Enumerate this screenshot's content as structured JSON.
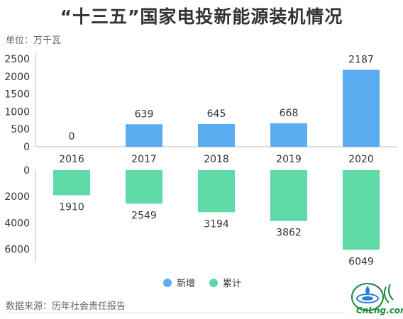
{
  "title": "“十三五”国家电投新能源装机情况",
  "unit_label": "单位：万千瓦",
  "source_label": "数据来源：历年社会责任报告",
  "logo_text": "CnLng.com",
  "colors": {
    "new": "#5aadf0",
    "cumulative": "#5fd9a6"
  },
  "chart_data": [
    {
      "type": "bar",
      "categories": [
        "2016",
        "2017",
        "2018",
        "2019",
        "2020"
      ],
      "series": [
        {
          "name": "新增",
          "values": [
            0,
            639,
            645,
            668,
            2187
          ]
        }
      ],
      "ylim": [
        0,
        2500
      ],
      "yticks": [
        "2500",
        "2000",
        "1500",
        "1000",
        "500",
        "0"
      ],
      "grid": false
    },
    {
      "type": "bar",
      "categories": [
        "2016",
        "2017",
        "2018",
        "2019",
        "2020"
      ],
      "series": [
        {
          "name": "累计",
          "values": [
            1910,
            2549,
            3194,
            3862,
            6049
          ]
        }
      ],
      "ylim": [
        0,
        7000
      ],
      "yticks": [
        "0",
        "2000",
        "4000",
        "6000"
      ],
      "orientation": "inverted",
      "grid": false
    }
  ],
  "legend": [
    {
      "label": "新增",
      "color_key": "new"
    },
    {
      "label": "累计",
      "color_key": "cumulative"
    }
  ]
}
